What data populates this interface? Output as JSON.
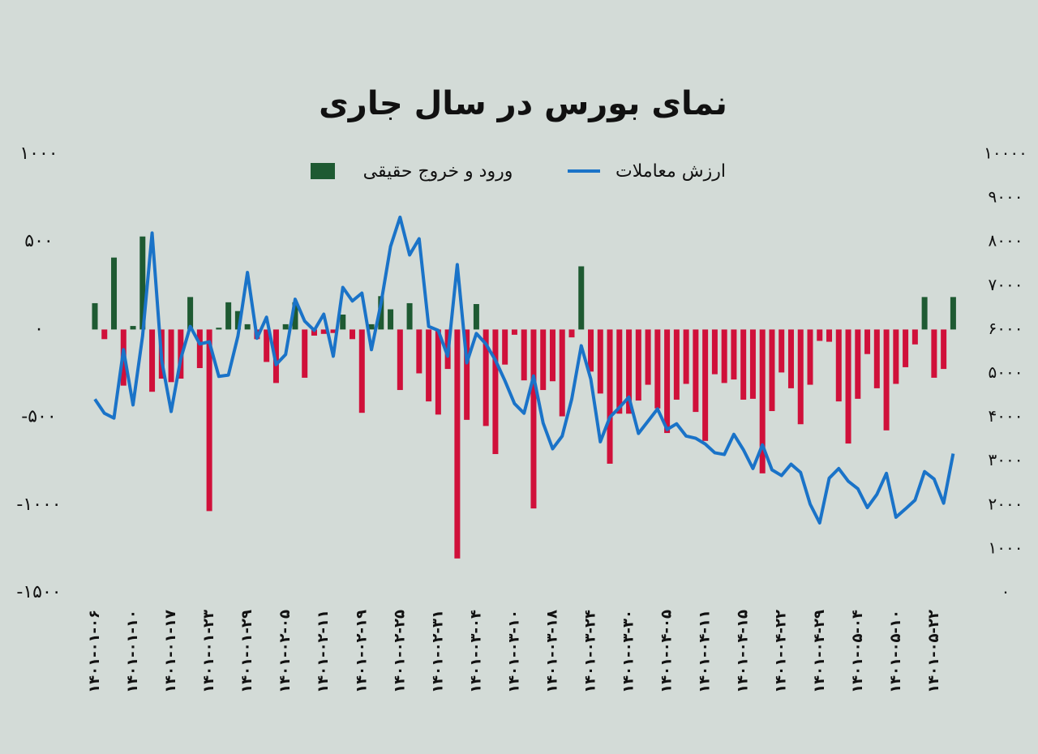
{
  "chart_data": {
    "type": "bar",
    "title": "نمای بورس در سال جاری",
    "categories": [
      "۱۴۰۱-۰۱-۰۶",
      null,
      null,
      null,
      "۱۴۰۱-۰۱-۱۰",
      null,
      null,
      null,
      "۱۴۰۱-۰۱-۱۷",
      null,
      null,
      null,
      "۱۴۰۱-۰۱-۲۳",
      null,
      null,
      null,
      "۱۴۰۱-۰۱-۲۹",
      null,
      null,
      null,
      "۱۴۰۱-۰۲-۰۵",
      null,
      null,
      null,
      "۱۴۰۱-۰۲-۱۱",
      null,
      null,
      null,
      "۱۴۰۱-۰۲-۱۹",
      null,
      null,
      null,
      "۱۴۰۱-۰۲-۲۵",
      null,
      null,
      null,
      "۱۴۰۱-۰۲-۳۱",
      null,
      null,
      null,
      "۱۴۰۱-۰۳-۰۴",
      null,
      null,
      null,
      "۱۴۰۱-۰۳-۱۰",
      null,
      null,
      null,
      "۱۴۰۱-۰۳-۱۸",
      null,
      null,
      null,
      "۱۴۰۱-۰۳-۲۴",
      null,
      null,
      null,
      "۱۴۰۱-۰۳-۳۰",
      null,
      null,
      null,
      "۱۴۰۱-۰۴-۰۵",
      null,
      null,
      null,
      "۱۴۰۱-۰۴-۱۱",
      null,
      null,
      null,
      "۱۴۰۱-۰۴-۱۵",
      null,
      null,
      null,
      "۱۴۰۱-۰۴-۲۲",
      null,
      null,
      null,
      "۱۴۰۱-۰۴-۲۹",
      null,
      null,
      null,
      "۱۴۰۱-۰۵-۰۴",
      null,
      null,
      null,
      "۱۴۰۱-۰۵-۱۰",
      null,
      null,
      null,
      "۱۴۰۱-۰۵-۲۲",
      null,
      null
    ],
    "series": [
      {
        "name": "ورود و خروج حقیقی",
        "type": "bar",
        "color": "#1e5a32",
        "negative_color": "#d0103a",
        "values": [
          150,
          -55,
          410,
          -320,
          20,
          530,
          -355,
          -280,
          -300,
          -280,
          185,
          -220,
          -1035,
          10,
          155,
          105,
          30,
          -55,
          -185,
          -305,
          30,
          155,
          -275,
          -35,
          -25,
          -20,
          85,
          -55,
          -475,
          30,
          190,
          115,
          -345,
          150,
          -250,
          -410,
          -485,
          -225,
          -1305,
          -515,
          145,
          -550,
          -710,
          -200,
          -30,
          -290,
          -1020,
          -345,
          -295,
          -495,
          -45,
          360,
          -240,
          -365,
          -765,
          -480,
          -480,
          -405,
          -315,
          -450,
          -590,
          -400,
          -310,
          -470,
          -635,
          -255,
          -305,
          -285,
          -400,
          -395,
          -820,
          -465,
          -245,
          -335,
          -540,
          -315,
          -65,
          -70,
          -410,
          -650,
          -395,
          -140,
          -335,
          -575,
          -310,
          -215,
          -85,
          185,
          -275,
          -225,
          185
        ]
      },
      {
        "name": "ارزش معاملات",
        "type": "line",
        "axis": "y2",
        "color": "#1a73c8",
        "values": [
          4410,
          4090,
          3980,
          5540,
          4280,
          5850,
          8200,
          5300,
          4130,
          5330,
          6070,
          5670,
          5720,
          4930,
          4960,
          5850,
          7300,
          5800,
          6280,
          5200,
          5430,
          6690,
          6190,
          5980,
          6350,
          5390,
          6960,
          6650,
          6830,
          5540,
          6590,
          7890,
          8560,
          7700,
          8070,
          6070,
          5980,
          5390,
          7480,
          5240,
          5910,
          5670,
          5300,
          4830,
          4310,
          4090,
          4940,
          3870,
          3280,
          3570,
          4410,
          5630,
          4870,
          3440,
          4000,
          4220,
          4460,
          3630,
          3910,
          4190,
          3720,
          3850,
          3570,
          3520,
          3390,
          3190,
          3150,
          3610,
          3260,
          2830,
          3370,
          2800,
          2670,
          2930,
          2740,
          2020,
          1590,
          2610,
          2830,
          2540,
          2370,
          1940,
          2240,
          2720,
          1720,
          1910,
          2110,
          2760,
          2590,
          2040,
          3170
        ]
      }
    ],
    "ylim": [
      -1500,
      1000
    ],
    "yticks": [
      {
        "value": 1000,
        "label": "۱۰۰۰"
      },
      {
        "value": 500,
        "label": "۵۰۰"
      },
      {
        "value": 0,
        "label": "۰"
      },
      {
        "value": -500,
        "label": "-۵۰۰"
      },
      {
        "value": -1000,
        "label": "-۱۰۰۰"
      },
      {
        "value": -1500,
        "label": "-۱۵۰۰"
      }
    ],
    "y2lim": [
      0,
      10000
    ],
    "y2ticks": [
      {
        "value": 10000,
        "label": "۱۰۰۰۰"
      },
      {
        "value": 9000,
        "label": "۹۰۰۰"
      },
      {
        "value": 8000,
        "label": "۸۰۰۰"
      },
      {
        "value": 7000,
        "label": "۷۰۰۰"
      },
      {
        "value": 6000,
        "label": "۶۰۰۰"
      },
      {
        "value": 5000,
        "label": "۵۰۰۰"
      },
      {
        "value": 4000,
        "label": "۴۰۰۰"
      },
      {
        "value": 3000,
        "label": "۳۰۰۰"
      },
      {
        "value": 2000,
        "label": "۲۰۰۰"
      },
      {
        "value": 1000,
        "label": "۱۰۰۰"
      },
      {
        "value": 0,
        "label": "۰"
      }
    ]
  }
}
